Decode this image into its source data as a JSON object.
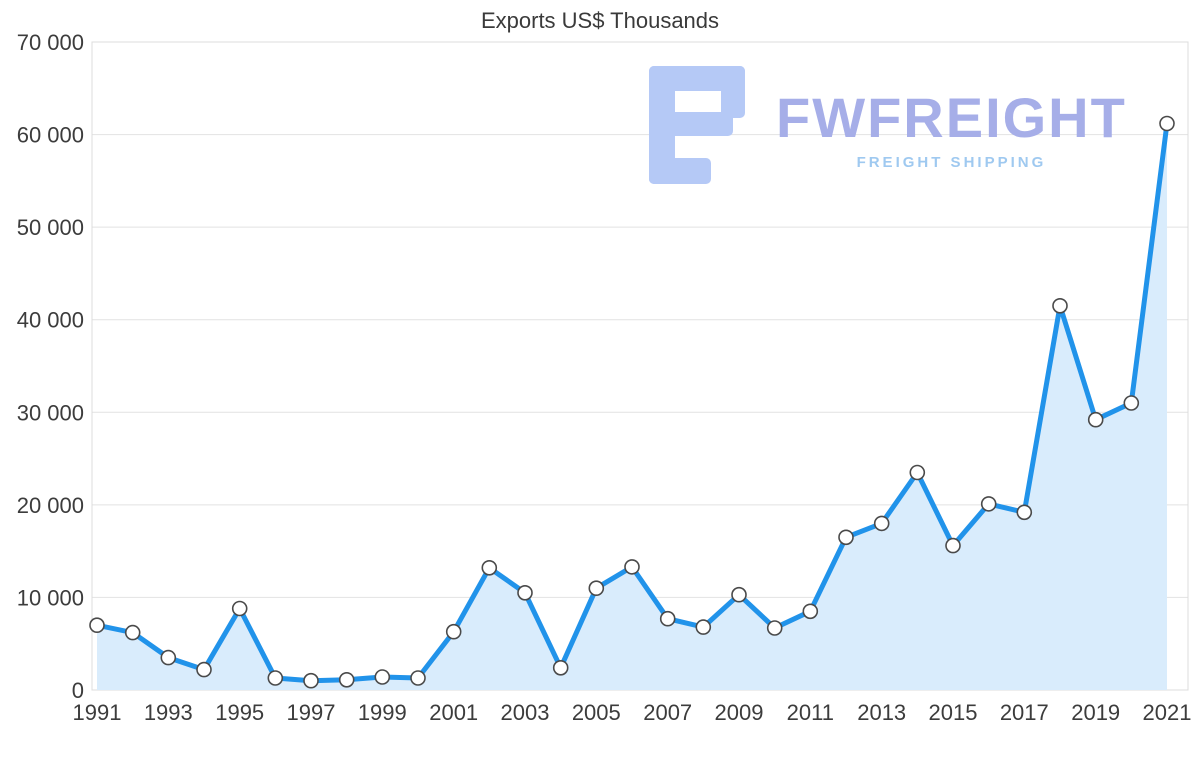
{
  "chart_data": {
    "type": "area",
    "title": "Exports US$ Thousands",
    "x": [
      1991,
      1992,
      1993,
      1994,
      1995,
      1996,
      1997,
      1998,
      1999,
      2000,
      2001,
      2002,
      2003,
      2004,
      2005,
      2006,
      2007,
      2008,
      2009,
      2010,
      2011,
      2012,
      2013,
      2014,
      2015,
      2016,
      2017,
      2018,
      2019,
      2020,
      2021
    ],
    "values": [
      7000,
      6200,
      3500,
      2200,
      8800,
      1300,
      1000,
      1100,
      1400,
      1300,
      6300,
      13200,
      10500,
      2400,
      11000,
      13300,
      7700,
      6800,
      10300,
      6700,
      8500,
      16500,
      18000,
      23500,
      15600,
      20100,
      19200,
      41500,
      29200,
      31000,
      61200
    ],
    "ylim": [
      0,
      70000
    ],
    "ytick_step": 10000,
    "yticks_labels": [
      "0",
      "10 000",
      "20 000",
      "30 000",
      "40 000",
      "50 000",
      "60 000",
      "70 000"
    ],
    "xticks": [
      1991,
      1993,
      1995,
      1997,
      1999,
      2001,
      2003,
      2005,
      2007,
      2009,
      2011,
      2013,
      2015,
      2017,
      2019,
      2021
    ],
    "grid": "horizontal",
    "legend": "none",
    "line_color": "#2193ea",
    "area_color": "#d9ecfc",
    "marker_fill": "#ffffff",
    "marker_stroke": "#4a4a4a",
    "grid_color": "#e2e2e2"
  },
  "watermark": {
    "brand": "FWFREIGHT",
    "tagline": "FREIGHT SHIPPING",
    "logo": "fwfreight-logo",
    "brand_color": "#a6aee8",
    "tagline_color": "#9fc9f0",
    "logo_color": "#b5c9f6"
  }
}
